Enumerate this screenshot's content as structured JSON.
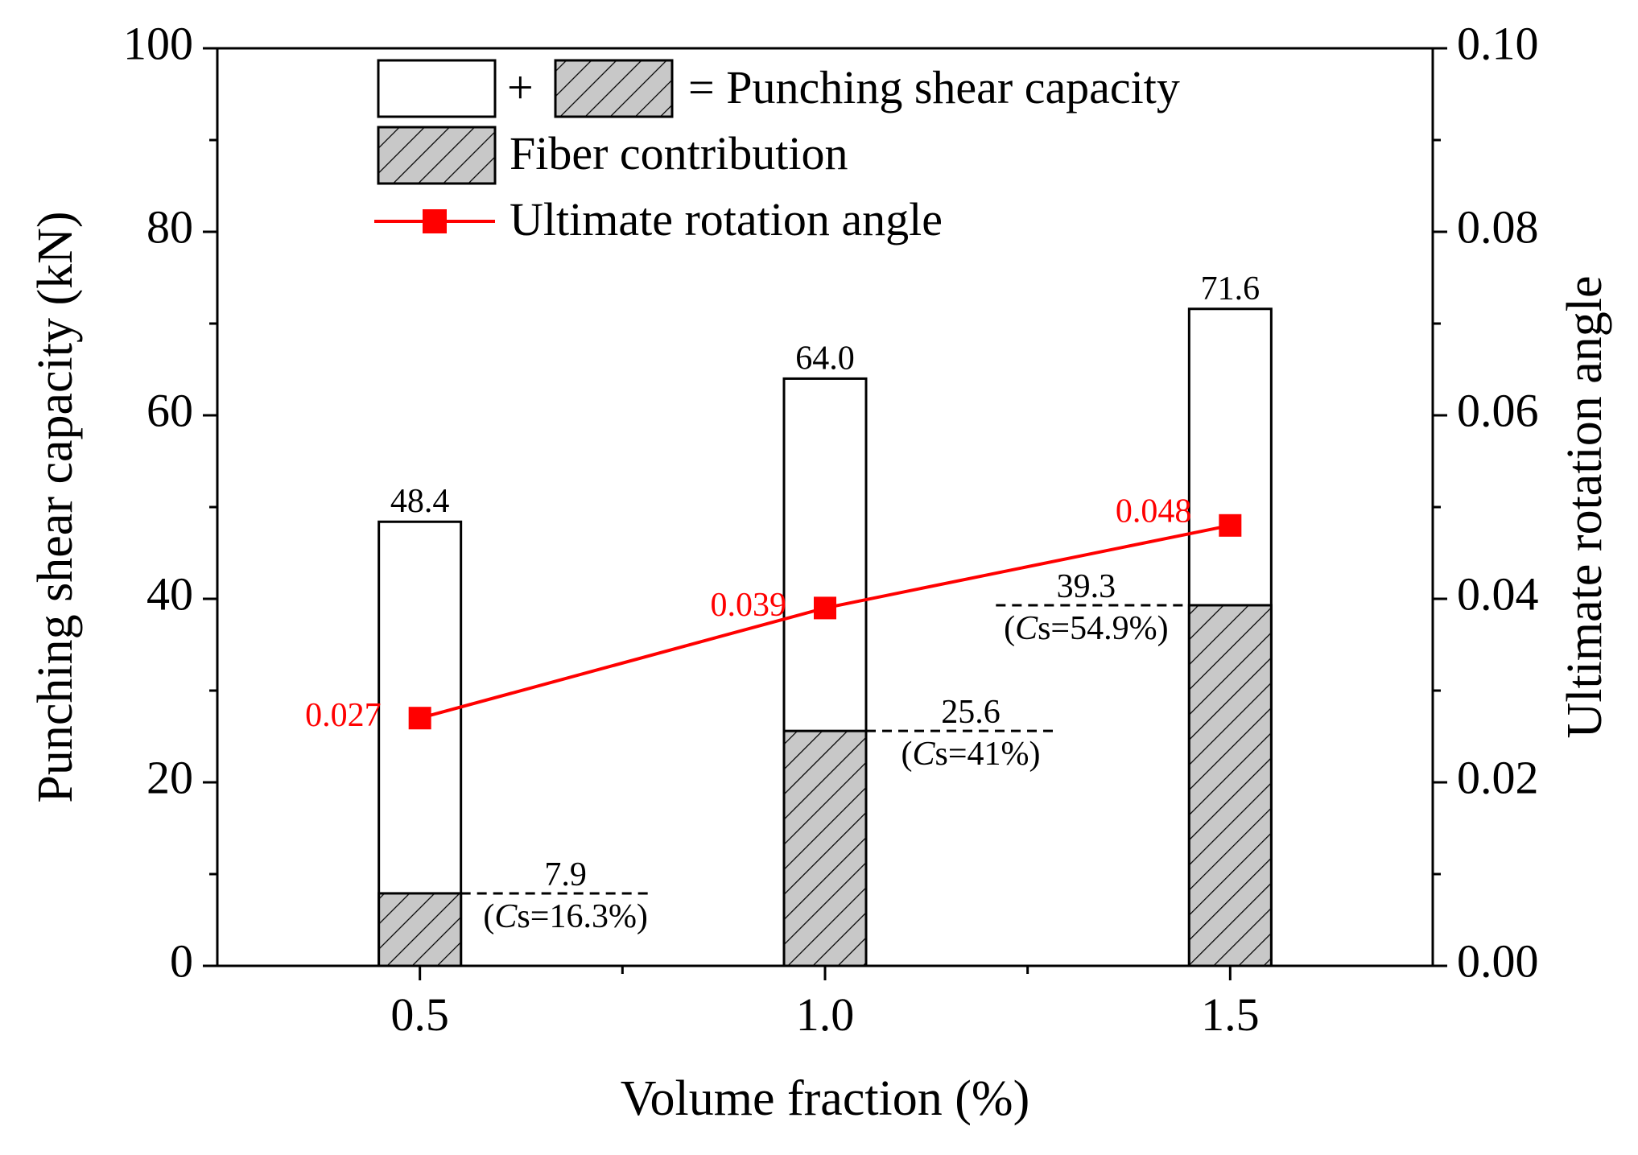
{
  "chart_data": {
    "type": "bar",
    "categories": [
      "0.5",
      "1.0",
      "1.5"
    ],
    "xlabel": "Volume fraction (%)",
    "ylabel": "Punching shear capacity (kN)",
    "y2label": "Ultimate rotation angle",
    "ylim": [
      0,
      100
    ],
    "y2lim": [
      0,
      0.1
    ],
    "y_ticks": [
      "0",
      "20",
      "40",
      "60",
      "80",
      "100"
    ],
    "y2_ticks": [
      "0.00",
      "0.02",
      "0.04",
      "0.06",
      "0.08",
      "0.10"
    ],
    "series": [
      {
        "name": "Punching shear capacity",
        "values": [
          48.4,
          64.0,
          71.6
        ],
        "labels": [
          "48.4",
          "64.0",
          "71.6"
        ]
      },
      {
        "name": "Fiber contribution",
        "values": [
          7.9,
          25.6,
          39.3
        ],
        "labels": [
          "7.9",
          "25.6",
          "39.3"
        ],
        "cs_labels": [
          "16.3%",
          "41%",
          "54.9%"
        ]
      },
      {
        "name": "Ultimate rotation angle",
        "axis": "right",
        "values": [
          0.027,
          0.039,
          0.048
        ],
        "labels": [
          "0.027",
          "0.039",
          "0.048"
        ],
        "color": "#ff0000"
      }
    ],
    "legend": {
      "position": "top-left",
      "entries": {
        "total": "= Punching shear capacity",
        "fiber": "Fiber contribution",
        "angle": "Ultimate rotation angle"
      }
    },
    "cs_prefix": "C",
    "cs_sub": "s",
    "colors": {
      "fiber_fill": "#c8c8c8",
      "line": "#ff0000"
    }
  }
}
